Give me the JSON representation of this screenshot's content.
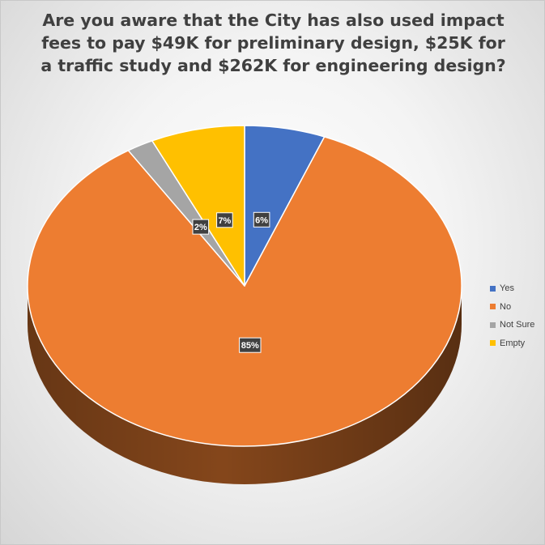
{
  "chart_data": {
    "type": "pie",
    "title": "Are you aware that the City has also used impact fees to pay $49K for preliminary design, $25K for a traffic study and $262K for engineering design?",
    "categories": [
      "Yes",
      "No",
      "Not Sure",
      "Empty"
    ],
    "values": [
      6,
      85,
      2,
      7
    ],
    "data_labels": [
      "6%",
      "85%",
      "2%",
      "7%"
    ],
    "colors": [
      "#4472C4",
      "#ED7D31",
      "#A5A5A5",
      "#FFC000"
    ],
    "style": "3d",
    "legend_position": "right"
  }
}
